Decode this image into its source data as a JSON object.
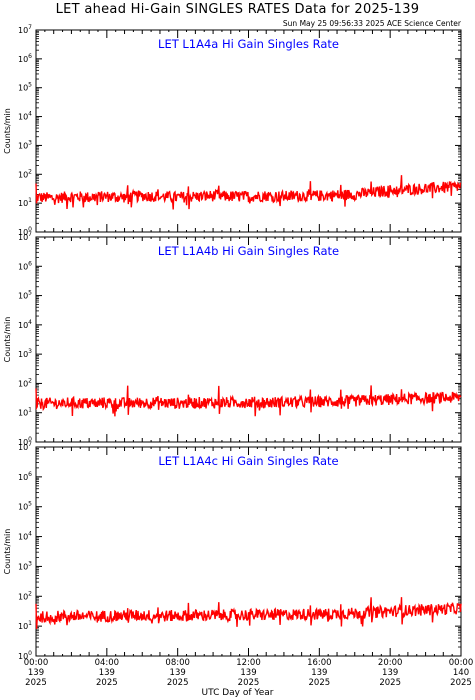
{
  "header": {
    "title": "LET ahead Hi-Gain SINGLES RATES Data for 2025-139",
    "timestamp": "Sun May 25 09:56:33 2025 ACE Science Center"
  },
  "colors": {
    "series": "#ff0000",
    "panel_title": "#0000ff",
    "axes": "#000000"
  },
  "x_axis": {
    "label": "UTC Day of Year",
    "ticks": [
      {
        "hour": 0,
        "time": "00:00",
        "doy": "139",
        "year": "2025"
      },
      {
        "hour": 4,
        "time": "04:00",
        "doy": "139",
        "year": "2025"
      },
      {
        "hour": 8,
        "time": "08:00",
        "doy": "139",
        "year": "2025"
      },
      {
        "hour": 12,
        "time": "12:00",
        "doy": "139",
        "year": "2025"
      },
      {
        "hour": 16,
        "time": "16:00",
        "doy": "139",
        "year": "2025"
      },
      {
        "hour": 20,
        "time": "20:00",
        "doy": "139",
        "year": "2025"
      },
      {
        "hour": 24,
        "time": "00:00",
        "doy": "140",
        "year": "2025"
      }
    ]
  },
  "chart_data": [
    {
      "type": "line",
      "title": "LET L1A4a Hi Gain Singles Rate",
      "ylabel": "Counts/min",
      "yscale": "log",
      "ylim": [
        1,
        10000000
      ],
      "xlim_hours": [
        0,
        24
      ],
      "yticks": [
        1,
        10,
        100,
        1000,
        10000,
        100000,
        1000000,
        10000000
      ],
      "series": [
        {
          "x_hours": [
            0,
            1,
            2,
            3,
            4,
            5,
            6,
            7,
            8,
            9,
            10,
            11,
            12,
            13,
            14,
            15,
            16,
            17,
            18,
            19,
            20,
            21,
            22,
            23,
            24
          ],
          "values": [
            16,
            15,
            17,
            16,
            17,
            16,
            18,
            17,
            16,
            17,
            18,
            17,
            17,
            18,
            17,
            18,
            18,
            19,
            20,
            23,
            28,
            30,
            32,
            35,
            38
          ]
        }
      ]
    },
    {
      "type": "line",
      "title": "LET L1A4b Hi Gain Singles Rate",
      "ylabel": "Counts/min",
      "yscale": "log",
      "ylim": [
        1,
        10000000
      ],
      "xlim_hours": [
        0,
        24
      ],
      "yticks": [
        1,
        10,
        100,
        1000,
        10000,
        100000,
        1000000,
        10000000
      ],
      "series": [
        {
          "x_hours": [
            0,
            1,
            2,
            3,
            4,
            5,
            6,
            7,
            8,
            9,
            10,
            11,
            12,
            13,
            14,
            15,
            16,
            17,
            18,
            19,
            20,
            21,
            22,
            23,
            24
          ],
          "values": [
            20,
            21,
            22,
            21,
            22,
            21,
            22,
            22,
            21,
            22,
            22,
            22,
            23,
            22,
            23,
            23,
            24,
            24,
            25,
            27,
            28,
            30,
            31,
            32,
            33
          ]
        }
      ]
    },
    {
      "type": "line",
      "title": "LET L1A4c Hi Gain Singles Rate",
      "ylabel": "Counts/min",
      "yscale": "log",
      "ylim": [
        1,
        10000000
      ],
      "xlim_hours": [
        0,
        24
      ],
      "yticks": [
        1,
        10,
        100,
        1000,
        10000,
        100000,
        1000000,
        10000000
      ],
      "series": [
        {
          "x_hours": [
            0,
            1,
            2,
            3,
            4,
            5,
            6,
            7,
            8,
            9,
            10,
            11,
            12,
            13,
            14,
            15,
            16,
            17,
            18,
            19,
            20,
            21,
            22,
            23,
            24
          ],
          "values": [
            20,
            21,
            22,
            21,
            22,
            22,
            23,
            22,
            22,
            23,
            23,
            23,
            24,
            24,
            24,
            25,
            25,
            26,
            27,
            29,
            31,
            33,
            35,
            37,
            40
          ]
        }
      ]
    }
  ]
}
